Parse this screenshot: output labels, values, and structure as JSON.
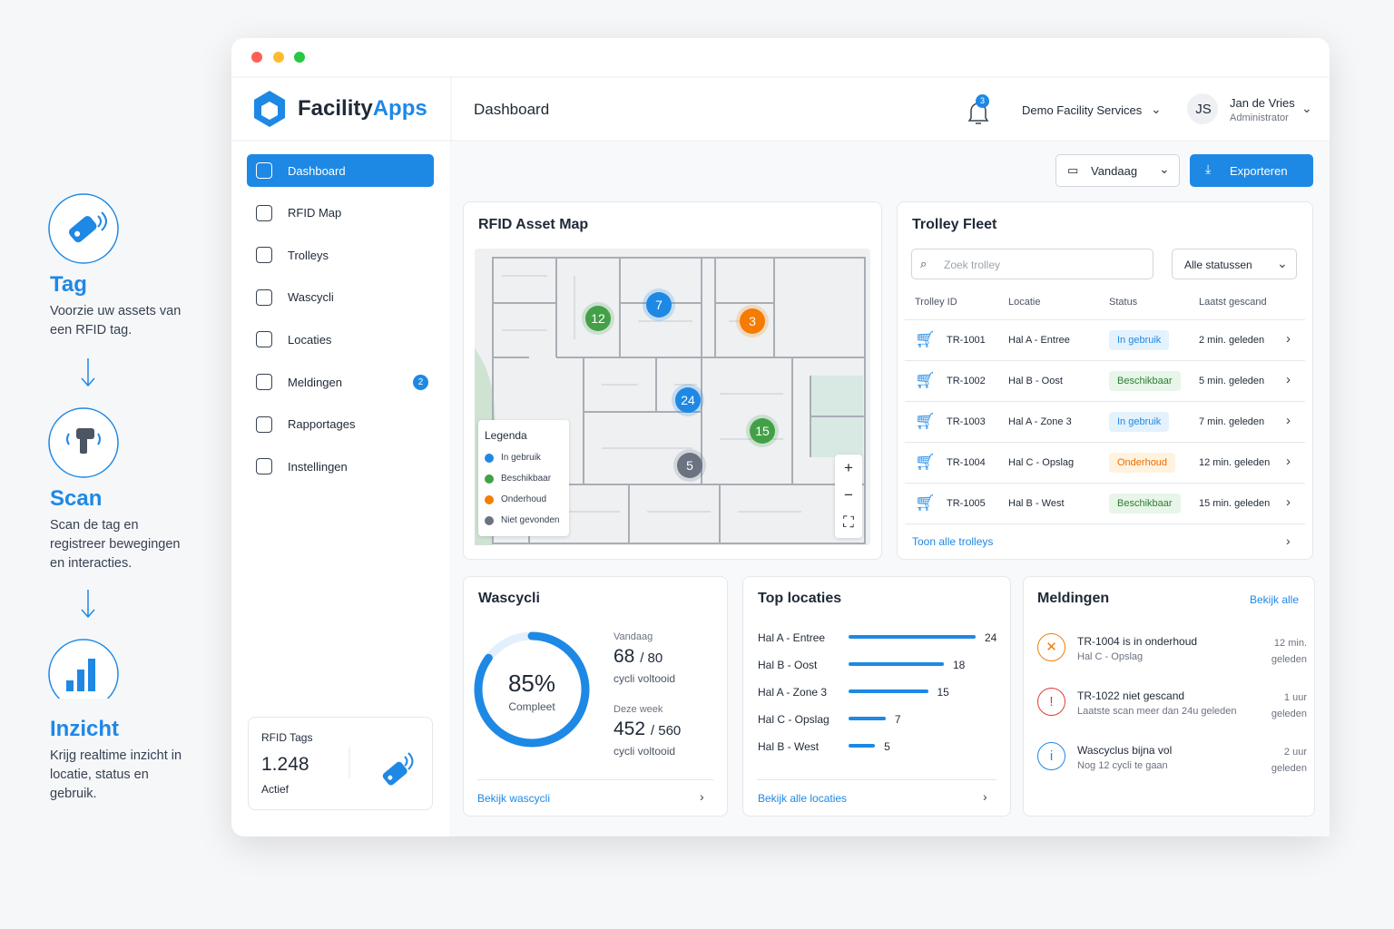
{
  "steps": [
    {
      "title": "Tag",
      "text": "Voorzie uw assets van een RFID tag."
    },
    {
      "title": "Scan",
      "text": "Scan de tag en registreer bewegingen en interacties."
    },
    {
      "title": "Inzicht",
      "text": "Krijg realtime inzicht in locatie, status en gebruik."
    }
  ],
  "brand": {
    "name": "Facility",
    "accent": "Apps"
  },
  "nav": [
    {
      "label": "Dashboard"
    },
    {
      "label": "RFID Map"
    },
    {
      "label": "Trolleys"
    },
    {
      "label": "Wascycli"
    },
    {
      "label": "Locaties"
    },
    {
      "label": "Meldingen",
      "badge": "2"
    },
    {
      "label": "Rapportages"
    },
    {
      "label": "Instellingen"
    }
  ],
  "rfid_tags": {
    "title": "RFID Tags",
    "value": "1.248",
    "label": "Actief"
  },
  "header": {
    "title": "Dashboard",
    "notifications": "3",
    "organization": "Demo Facility Services",
    "initials": "JS",
    "user": "Jan de Vries",
    "role": "Administrator"
  },
  "toolbar": {
    "date": "Vandaag",
    "export": "Exporteren"
  },
  "map": {
    "title": "RFID Asset Map",
    "clusters": [
      {
        "count": "12",
        "color": "#43a047"
      },
      {
        "count": "7",
        "color": "#1e88e5"
      },
      {
        "count": "3",
        "color": "#f57c00"
      },
      {
        "count": "24",
        "color": "#1e88e5"
      },
      {
        "count": "15",
        "color": "#43a047"
      },
      {
        "count": "5",
        "color": "#6b7280"
      }
    ],
    "legend_title": "Legenda",
    "legend": [
      {
        "label": "In gebruik",
        "color": "#1e88e5"
      },
      {
        "label": "Beschikbaar",
        "color": "#43a047"
      },
      {
        "label": "Onderhoud",
        "color": "#f57c00"
      },
      {
        "label": "Niet gevonden",
        "color": "#6b7280"
      }
    ]
  },
  "fleet": {
    "title": "Trolley Fleet",
    "search": "Zoek trolley",
    "filter": "Alle statussen",
    "columns": [
      "Trolley ID",
      "Locatie",
      "Status",
      "Laatst gescand"
    ],
    "rows": [
      {
        "id": "TR-1001",
        "location": "Hal A - Entree",
        "status": "In gebruik",
        "color": "#1e88e5",
        "bg": "#e3f2fd",
        "scanned": "2 min. geleden"
      },
      {
        "id": "TR-1002",
        "location": "Hal B - Oost",
        "status": "Beschikbaar",
        "color": "#2e7d32",
        "bg": "#e8f5e9",
        "scanned": "5 min. geleden"
      },
      {
        "id": "TR-1003",
        "location": "Hal A - Zone 3",
        "status": "In gebruik",
        "color": "#1e88e5",
        "bg": "#e3f2fd",
        "scanned": "7 min. geleden"
      },
      {
        "id": "TR-1004",
        "location": "Hal C - Opslag",
        "status": "Onderhoud",
        "color": "#ef6c00",
        "bg": "#fff3e0",
        "scanned": "12 min. geleden"
      },
      {
        "id": "TR-1005",
        "location": "Hal B - West",
        "status": "Beschikbaar",
        "color": "#2e7d32",
        "bg": "#e8f5e9",
        "scanned": "15 min. geleden"
      }
    ],
    "link": "Toon alle trolleys"
  },
  "wash": {
    "title": "Wascycli",
    "percent": {
      "value": 85,
      "label": "85%"
    },
    "percent_label": "Compleet",
    "today_label": "Vandaag",
    "today": "68",
    "today_total": "/ 80",
    "today_unit": "cycli voltooid",
    "week_label": "Deze week",
    "week": "452",
    "week_total": "/ 560",
    "week_unit": "cycli voltooid",
    "link": "Bekijk wascycli"
  },
  "top_locations": {
    "title": "Top locaties",
    "categories": [
      "Hal A - Entree",
      "Hal B - Oost",
      "Hal A - Zone 3",
      "Hal C - Opslag",
      "Hal B - West"
    ],
    "values": [
      24,
      18,
      15,
      7,
      5
    ],
    "color": "#1e88e5",
    "link": "Bekijk alle locaties"
  },
  "alerts": {
    "title": "Meldingen",
    "link": "Bekijk alle",
    "items": [
      {
        "title": "TR-1004 is in onderhoud",
        "sub": "Hal C - Opslag",
        "time": "12 min. geleden",
        "color": "#f57c00",
        "icon": "✕"
      },
      {
        "title": "TR-1022 niet gescand",
        "sub": "Laatste scan meer dan 24u geleden",
        "time": "1 uur geleden",
        "color": "#e53935",
        "icon": "!"
      },
      {
        "title": "Wascyclus bijna vol",
        "sub": "Nog 12 cycli te gaan",
        "time": "2 uur geleden",
        "color": "#1e88e5",
        "icon": "i"
      }
    ]
  }
}
